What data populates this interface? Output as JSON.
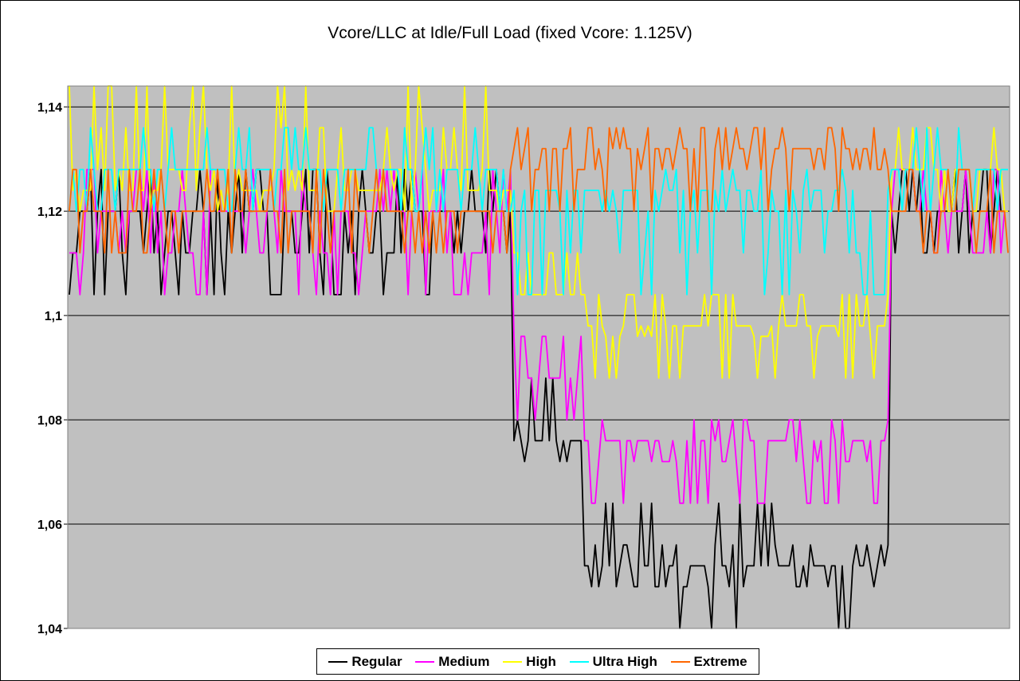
{
  "chart_data": {
    "type": "line",
    "title": "Vcore/LLC at Idle/Full Load (fixed Vcore: 1.125V)",
    "xlabel": "",
    "ylabel": "",
    "ylim": [
      1.04,
      1.144
    ],
    "y_ticks": [
      1.04,
      1.06,
      1.08,
      1.1,
      1.12,
      1.14
    ],
    "y_tick_labels": [
      "1,04",
      "1,06",
      "1,08",
      "1,1",
      "1,12",
      "1,14"
    ],
    "grid": true,
    "legend_position": "bottom",
    "plot_background": "#c0c0c0",
    "n_points": 267,
    "series": [
      {
        "name": "Regular",
        "color": "#000000",
        "segments": [
          {
            "from": 0,
            "to": 125,
            "base": 1.12,
            "values": [
              1.104,
              1.112,
              1.128,
              1.12
            ]
          },
          {
            "from": 126,
            "to": 145,
            "base": 1.076,
            "values": [
              1.072,
              1.08,
              1.088
            ]
          },
          {
            "from": 146,
            "to": 232,
            "base": 1.052,
            "values": [
              1.048,
              1.056,
              1.064,
              1.04
            ]
          },
          {
            "from": 233,
            "to": 266,
            "base": 1.12,
            "values": [
              1.112,
              1.12,
              1.128
            ]
          }
        ]
      },
      {
        "name": "Medium",
        "color": "#ff00ff",
        "segments": [
          {
            "from": 0,
            "to": 125,
            "base": 1.12,
            "values": [
              1.104,
              1.112,
              1.128
            ]
          },
          {
            "from": 126,
            "to": 145,
            "base": 1.088,
            "values": [
              1.08,
              1.096
            ]
          },
          {
            "from": 146,
            "to": 232,
            "base": 1.076,
            "values": [
              1.064,
              1.072,
              1.08
            ]
          },
          {
            "from": 233,
            "to": 266,
            "base": 1.12,
            "values": [
              1.112,
              1.128
            ]
          }
        ]
      },
      {
        "name": "High",
        "color": "#ffff00",
        "segments": [
          {
            "from": 0,
            "to": 125,
            "base": 1.124,
            "values": [
              1.12,
              1.128,
              1.136,
              1.144
            ]
          },
          {
            "from": 126,
            "to": 145,
            "base": 1.104,
            "values": [
              1.104,
              1.112
            ]
          },
          {
            "from": 146,
            "to": 232,
            "base": 1.098,
            "values": [
              1.088,
              1.096,
              1.104
            ]
          },
          {
            "from": 233,
            "to": 266,
            "base": 1.128,
            "values": [
              1.12,
              1.128,
              1.136
            ]
          }
        ]
      },
      {
        "name": "Ultra High",
        "color": "#00ffff",
        "segments": [
          {
            "from": 0,
            "to": 125,
            "base": 1.128,
            "values": [
              1.12,
              1.128,
              1.136
            ]
          },
          {
            "from": 126,
            "to": 232,
            "base": 1.124,
            "values": [
              1.104,
              1.112,
              1.12,
              1.128
            ]
          },
          {
            "from": 233,
            "to": 266,
            "base": 1.128,
            "values": [
              1.12,
              1.128,
              1.136
            ]
          }
        ]
      },
      {
        "name": "Extreme",
        "color": "#ff6600",
        "segments": [
          {
            "from": 0,
            "to": 125,
            "base": 1.12,
            "values": [
              1.112,
              1.12,
              1.128
            ]
          },
          {
            "from": 126,
            "to": 232,
            "base": 1.132,
            "values": [
              1.12,
              1.128,
              1.136
            ]
          },
          {
            "from": 233,
            "to": 266,
            "base": 1.12,
            "values": [
              1.112,
              1.12,
              1.128
            ]
          }
        ]
      }
    ]
  }
}
